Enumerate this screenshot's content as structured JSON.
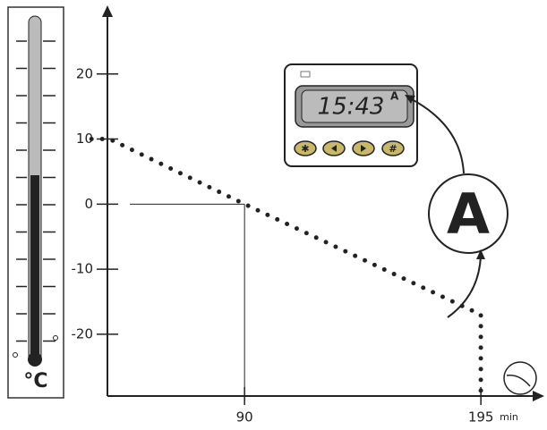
{
  "chart_data": {
    "type": "line",
    "x": [
      22,
      30,
      90,
      195,
      195
    ],
    "values": [
      10,
      10,
      0,
      -17,
      -29
    ],
    "color": "#222",
    "xlim": [
      15,
      220
    ],
    "ylim": [
      -29.5,
      30
    ],
    "xticks": [
      90,
      195
    ],
    "yticks": [
      20,
      10,
      0,
      -10,
      -20
    ],
    "x_unit": "min",
    "reference_point": {
      "x": 90,
      "y": 0
    }
  },
  "thermometer": {
    "unit": "°C"
  },
  "timer": {
    "time": "15:43",
    "mode": "A"
  },
  "callout": {
    "label": "A"
  }
}
